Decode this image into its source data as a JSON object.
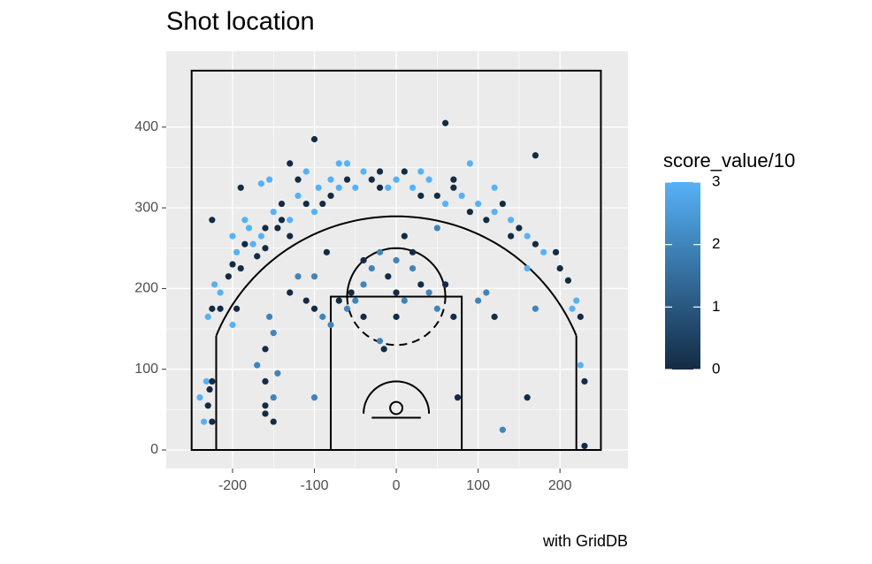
{
  "chart_data": {
    "type": "scatter",
    "title": "Shot location",
    "caption": "with GridDB",
    "xlim": [
      -281,
      283
    ],
    "ylim": [
      -23,
      494
    ],
    "xticks": [
      -200,
      -100,
      0,
      100,
      200
    ],
    "yticks": [
      0,
      100,
      200,
      300,
      400
    ],
    "grid": true,
    "colorbar": {
      "title": "score_value/10",
      "lim": [
        0,
        3
      ],
      "ticks": [
        0,
        1,
        2,
        3
      ],
      "low": "#132B43",
      "high": "#56B1F7"
    },
    "x": [
      -240,
      -232,
      -228,
      -230,
      -225,
      -235,
      -225,
      230,
      230,
      225,
      -230,
      -222,
      -215,
      -225,
      -215,
      -205,
      -200,
      -195,
      -190,
      -185,
      -180,
      -185,
      -175,
      -170,
      -165,
      -160,
      -160,
      -150,
      -145,
      -140,
      -130,
      -130,
      -120,
      -110,
      -100,
      -95,
      -90,
      -80,
      -70,
      -60,
      -50,
      -40,
      -30,
      -20,
      -10,
      0,
      10,
      20,
      30,
      40,
      50,
      60,
      70,
      80,
      90,
      100,
      110,
      120,
      130,
      140,
      150,
      160,
      170,
      180,
      195,
      200,
      210,
      215,
      220,
      225,
      -165,
      -190,
      -225,
      -200,
      -155,
      -130,
      -110,
      -100,
      -70,
      -60,
      60,
      90,
      170,
      -200,
      -195,
      -160,
      -160,
      -150,
      -150,
      -145,
      -150,
      -155,
      -170,
      -160,
      -160,
      -100,
      -120,
      -130,
      -110,
      -100,
      -90,
      -80,
      -70,
      -60,
      -55,
      -40,
      -40,
      -30,
      -20,
      -10,
      0,
      0,
      10,
      20,
      20,
      30,
      40,
      50,
      70,
      60,
      -20,
      -15,
      0,
      10,
      -100,
      -85,
      75,
      160,
      130,
      100,
      110,
      120,
      170,
      -50,
      -40,
      -120,
      -80,
      -20,
      30,
      70,
      120,
      -140,
      140,
      50,
      160
    ],
    "values": [
      65,
      85,
      75,
      55,
      85,
      35,
      35,
      5,
      85,
      105,
      165,
      205,
      195,
      175,
      175,
      215,
      230,
      245,
      225,
      255,
      275,
      285,
      255,
      240,
      265,
      275,
      250,
      295,
      275,
      305,
      285,
      265,
      315,
      305,
      295,
      325,
      305,
      315,
      325,
      335,
      325,
      345,
      335,
      345,
      325,
      335,
      345,
      325,
      315,
      335,
      315,
      305,
      325,
      315,
      295,
      305,
      285,
      295,
      305,
      285,
      275,
      265,
      255,
      245,
      245,
      225,
      210,
      175,
      185,
      165,
      330,
      325,
      285,
      265,
      335,
      355,
      345,
      385,
      355,
      355,
      405,
      355,
      365,
      155,
      175,
      45,
      55,
      35,
      65,
      95,
      145,
      165,
      105,
      125,
      85,
      65,
      215,
      195,
      185,
      175,
      165,
      155,
      185,
      175,
      195,
      205,
      235,
      225,
      245,
      215,
      195,
      165,
      185,
      245,
      225,
      205,
      195,
      175,
      165,
      205,
      135,
      125,
      235,
      265,
      215,
      245,
      65,
      65,
      25,
      185,
      195,
      165,
      175,
      185,
      165,
      335,
      335,
      325,
      345,
      335,
      325,
      285,
      265,
      275,
      225
    ],
    "score": [
      3,
      3,
      0,
      0,
      0,
      3,
      0,
      0,
      0,
      3,
      3,
      3,
      3,
      0,
      0,
      0,
      0,
      3,
      0,
      0,
      3,
      3,
      3,
      0,
      3,
      0,
      0,
      3,
      0,
      0,
      3,
      0,
      3,
      0,
      3,
      3,
      0,
      0,
      3,
      0,
      3,
      3,
      0,
      0,
      3,
      3,
      0,
      3,
      0,
      3,
      0,
      3,
      0,
      3,
      0,
      3,
      0,
      3,
      0,
      3,
      0,
      3,
      0,
      3,
      0,
      0,
      0,
      3,
      3,
      0,
      3,
      0,
      0,
      3,
      3,
      0,
      3,
      0,
      3,
      3,
      0,
      3,
      0,
      3,
      0,
      0,
      0,
      0,
      2,
      2,
      2,
      2,
      2,
      0,
      0,
      2,
      2,
      0,
      0,
      0,
      2,
      2,
      0,
      2,
      0,
      2,
      0,
      2,
      2,
      0,
      0,
      0,
      2,
      0,
      2,
      0,
      2,
      2,
      0,
      0,
      2,
      0,
      2,
      0,
      2,
      0,
      0,
      0,
      2,
      2,
      2,
      0,
      2,
      2,
      0,
      0,
      3,
      0,
      3,
      0,
      3,
      0,
      0,
      2,
      3
    ]
  }
}
